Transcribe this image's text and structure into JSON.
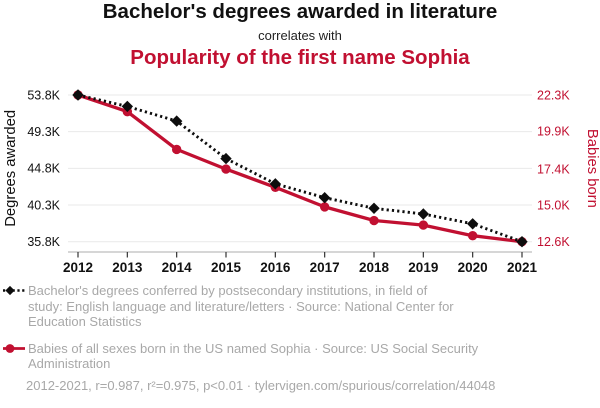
{
  "header": {
    "title": "Bachelor's degrees awarded in literature",
    "connector": "correlates with",
    "red_title": "Popularity of the first name Sophia"
  },
  "colors": {
    "red": "#c11031",
    "black": "#0d0d0d",
    "grey_text": "#a8a8a8",
    "gridline": "#e9e9e9",
    "spine": "#bdbdbd",
    "tick": "#333333"
  },
  "chart_data": {
    "type": "line",
    "title": "Bachelor's degrees awarded in literature correlates with Popularity of the first name Sophia",
    "grid": "horizontal",
    "legend_position": "bottom",
    "categories": [
      2012,
      2013,
      2014,
      2015,
      2016,
      2017,
      2018,
      2019,
      2020,
      2021
    ],
    "x_axis": {
      "tick_labels": [
        "2012",
        "2013",
        "2014",
        "2015",
        "2016",
        "2017",
        "2018",
        "2019",
        "2020",
        "2021"
      ]
    },
    "left_axis": {
      "label": "Degrees awarded",
      "tick_labels": [
        "53.8K",
        "49.3K",
        "44.8K",
        "40.3K",
        "35.8K"
      ],
      "tick_values": [
        53.8,
        49.3,
        44.8,
        40.3,
        35.8
      ],
      "range": [
        35.8,
        53.8
      ],
      "color": "#111111"
    },
    "right_axis": {
      "label": "Babies born",
      "tick_labels": [
        "22.3K",
        "19.9K",
        "17.4K",
        "15.0K",
        "12.6K"
      ],
      "tick_values": [
        22.3,
        19.9,
        17.4,
        15.0,
        12.6
      ],
      "range": [
        12.6,
        22.3
      ],
      "color": "#c11031"
    },
    "series": [
      {
        "id": "degrees",
        "name": "Bachelor's degrees conferred by postsecondary institutions, in field of study: English language and literature/letters",
        "source": "National Center for Education Statistics",
        "axis": "left",
        "color": "#0d0d0d",
        "line_style": "dotted",
        "marker": "diamond",
        "values_k": [
          53.8,
          52.4,
          50.6,
          46.0,
          42.9,
          41.2,
          39.9,
          39.2,
          38.0,
          35.8
        ]
      },
      {
        "id": "sophia",
        "name": "Babies of all sexes born in the US named Sophia",
        "source": "US Social Security Administration",
        "axis": "right",
        "color": "#c11031",
        "line_style": "solid",
        "marker": "circle",
        "values_k": [
          22.3,
          21.2,
          18.7,
          17.4,
          16.2,
          14.9,
          14.0,
          13.7,
          13.0,
          12.6
        ]
      }
    ]
  },
  "legend": {
    "items": [
      {
        "marker": "black-diamond-dotted",
        "lines": [
          "Bachelor's degrees conferred by postsecondary institutions, in field of",
          "study: English language and literature/letters · Source: National Center for",
          "Education Statistics"
        ]
      },
      {
        "marker": "red-circle-solid",
        "lines": [
          "Babies of all sexes born in the US named Sophia · Source: US Social Security",
          "Administration"
        ]
      }
    ]
  },
  "footer": {
    "text": "2012-2021, r=0.987, r²=0.975, p<0.01 · tylervigen.com/spurious/correlation/44048"
  }
}
